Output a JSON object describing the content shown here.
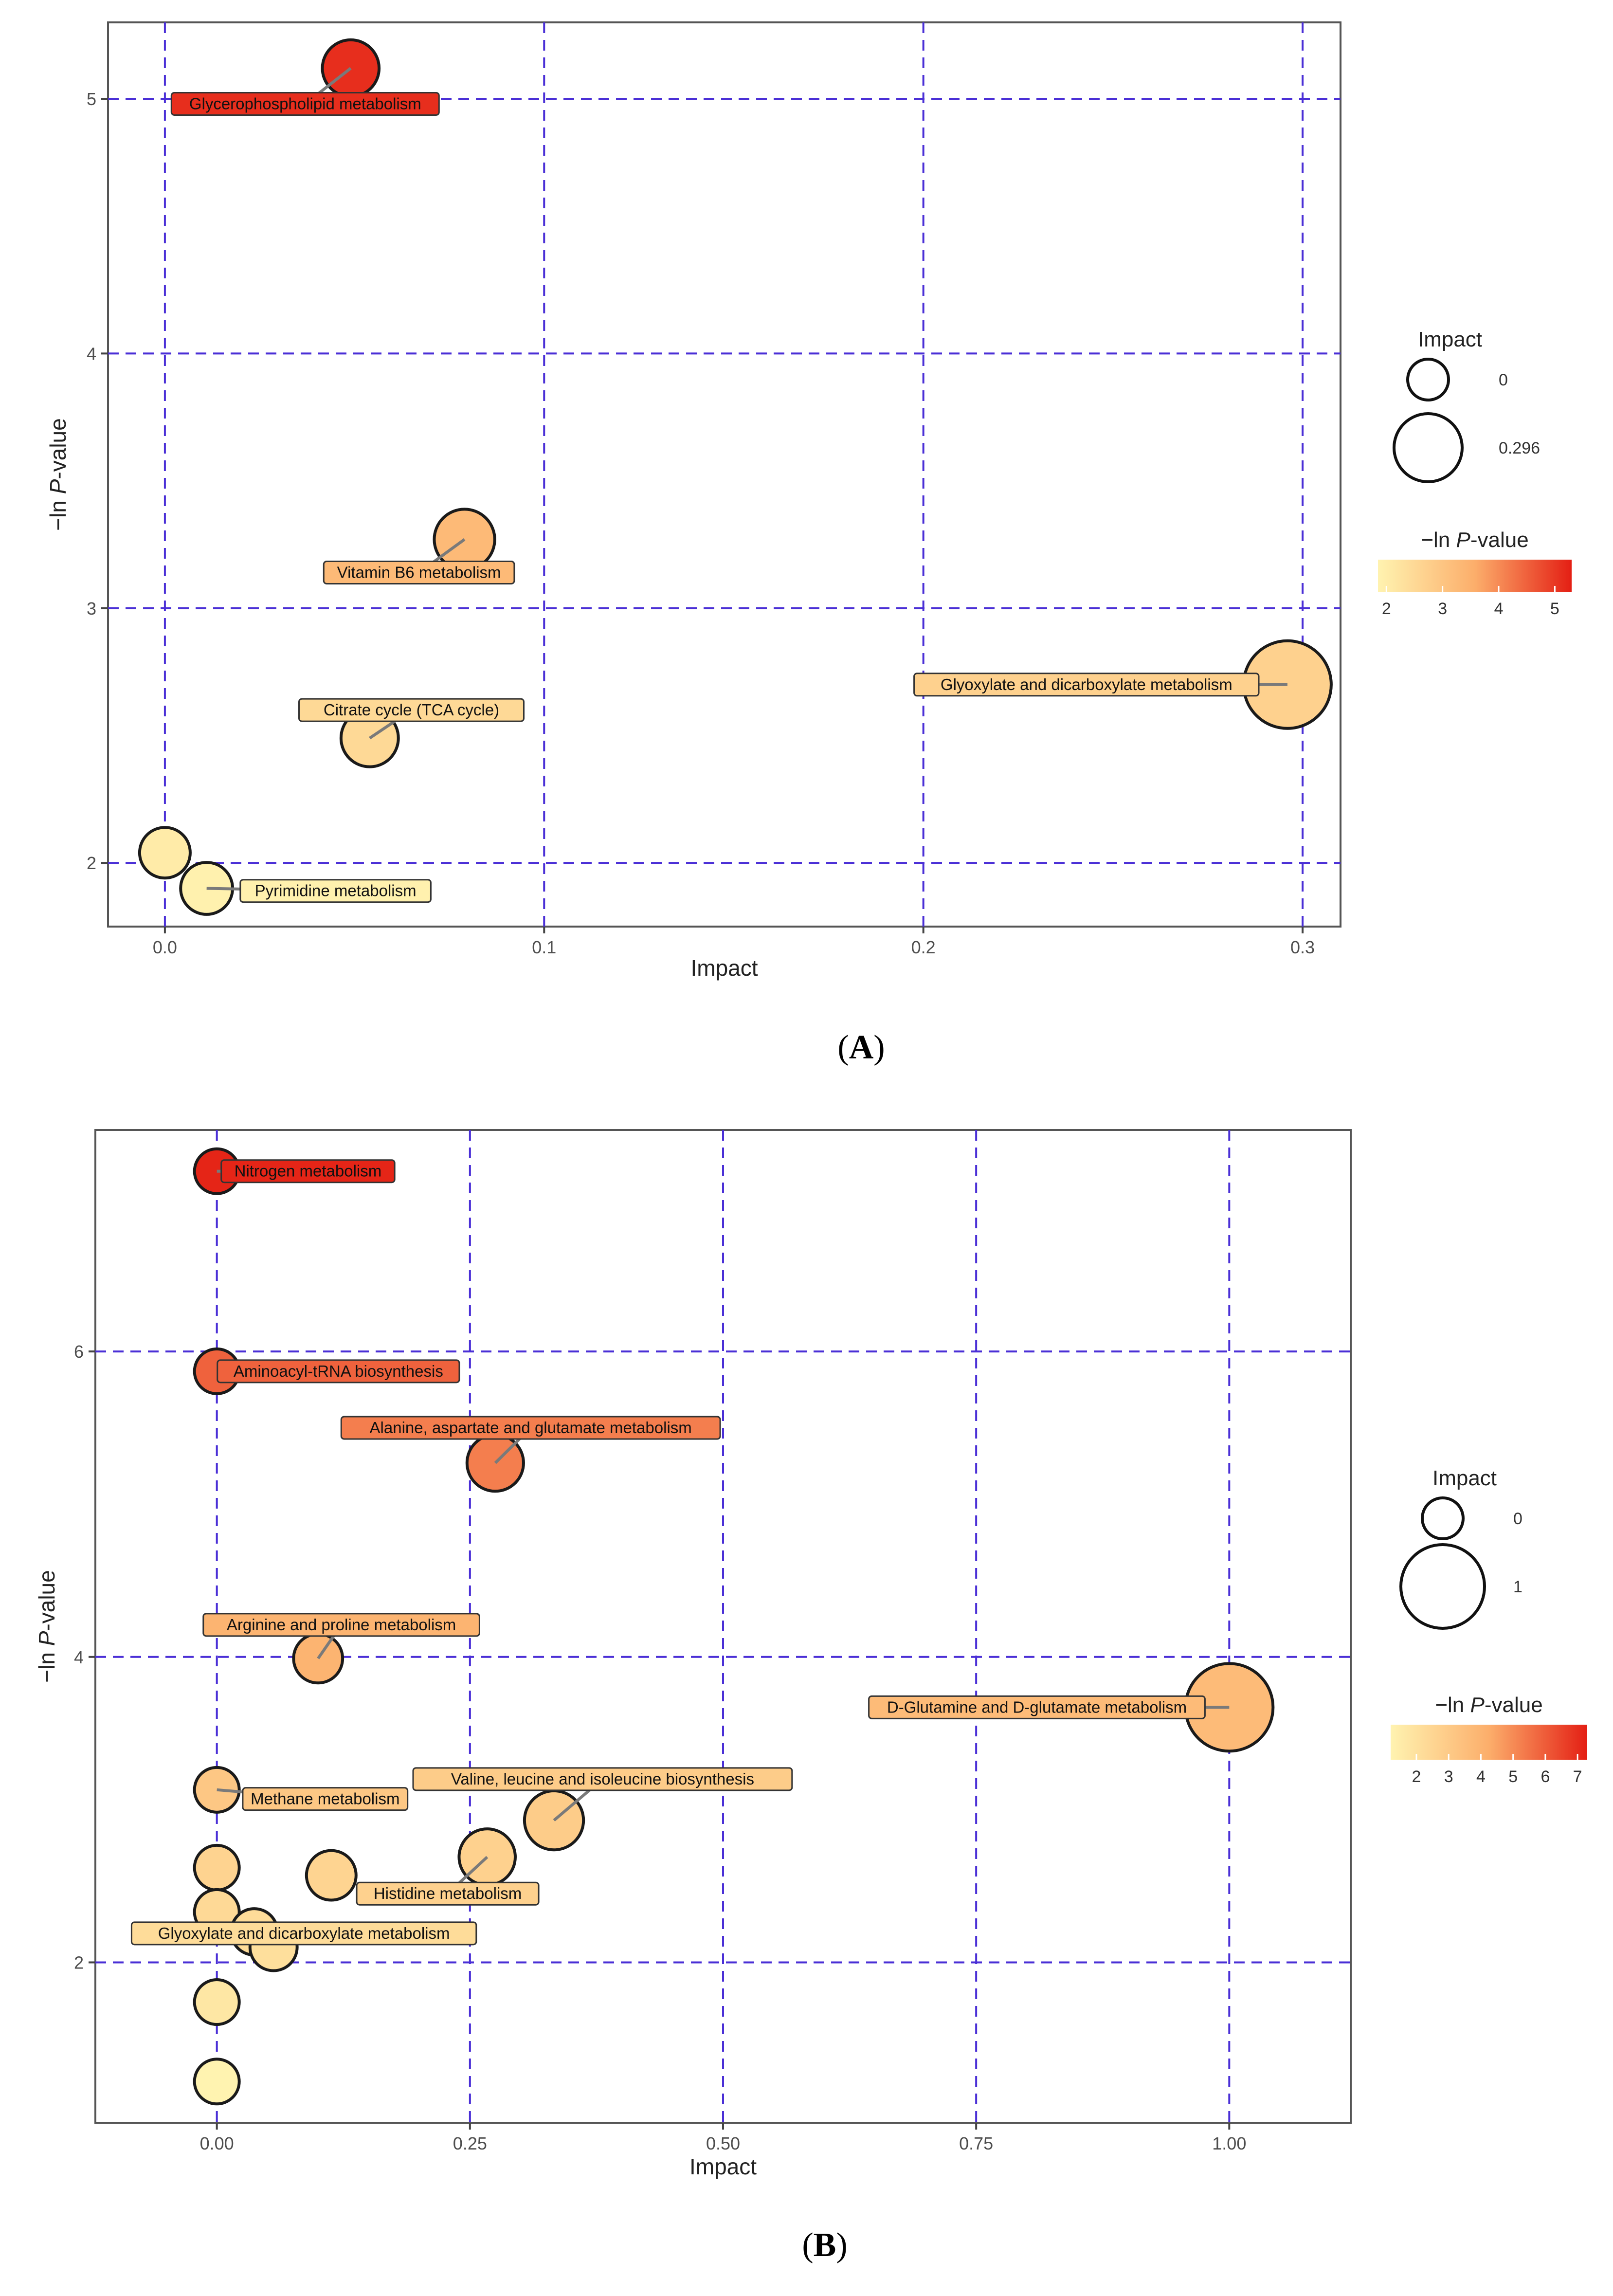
{
  "chart_data": [
    {
      "panel": "A",
      "type": "scatter",
      "title": "",
      "xlabel": "Impact",
      "ylabel_prefix": "−ln ",
      "ylabel_italic": "P",
      "ylabel_suffix": "-value",
      "xlim": [
        -0.015,
        0.31
      ],
      "ylim": [
        1.75,
        5.3
      ],
      "xticks": [
        0.0,
        0.1,
        0.2,
        0.3
      ],
      "xtick_labels": [
        "0.0",
        "0.1",
        "0.2",
        "0.3"
      ],
      "yticks": [
        2,
        3,
        4,
        5
      ],
      "ytick_labels": [
        "2",
        "3",
        "4",
        "5"
      ],
      "size_range": [
        0,
        0.296
      ],
      "color_range": [
        1.85,
        5.3
      ],
      "points": [
        {
          "x": 0.049,
          "y": 5.12,
          "label": "Glycerophospholipid metabolism",
          "lx": 0.037,
          "ly": 4.98
        },
        {
          "x": 0.079,
          "y": 3.27,
          "label": "Vitamin B6 metabolism",
          "lx": 0.067,
          "ly": 3.14
        },
        {
          "x": 0.054,
          "y": 2.49,
          "label": "Citrate cycle (TCA cycle)",
          "lx": 0.065,
          "ly": 2.6
        },
        {
          "x": 0.296,
          "y": 2.7,
          "label": "Glyoxylate and dicarboxylate metabolism",
          "lx": 0.243,
          "ly": 2.7
        },
        {
          "x": 0.0,
          "y": 2.04,
          "label": ""
        },
        {
          "x": 0.011,
          "y": 1.9,
          "label": "Pyrimidine metabolism",
          "lx": 0.045,
          "ly": 1.89
        }
      ],
      "legend": {
        "size_title": "Impact",
        "size_labels": [
          "0",
          "0.296"
        ],
        "color_title_prefix": "−ln ",
        "color_title_italic": "P",
        "color_title_suffix": "-value",
        "color_ticks": [
          2,
          3,
          4,
          5
        ],
        "color_tick_labels": [
          "2",
          "3",
          "4",
          "5"
        ]
      }
    },
    {
      "panel": "B",
      "type": "scatter",
      "title": "",
      "xlabel": "Impact",
      "ylabel_prefix": "−ln ",
      "ylabel_italic": "P",
      "ylabel_suffix": "-value",
      "xlim": [
        -0.12,
        1.12
      ],
      "ylim": [
        0.95,
        7.45
      ],
      "xticks": [
        0.0,
        0.25,
        0.5,
        0.75,
        1.0
      ],
      "xtick_labels": [
        "0.00",
        "0.25",
        "0.50",
        "0.75",
        "1.00"
      ],
      "yticks": [
        2,
        4,
        6
      ],
      "ytick_labels": [
        "2",
        "4",
        "6"
      ],
      "size_range": [
        0,
        1
      ],
      "color_range": [
        1.2,
        7.3
      ],
      "points": [
        {
          "x": 0.0,
          "y": 7.18,
          "label": "Nitrogen metabolism",
          "lx": 0.09,
          "ly": 7.18
        },
        {
          "x": 0.0,
          "y": 5.87,
          "label": "Aminoacyl-tRNA biosynthesis",
          "lx": 0.12,
          "ly": 5.87
        },
        {
          "x": 0.275,
          "y": 5.27,
          "label": "Alanine, aspartate and glutamate metabolism",
          "lx": 0.31,
          "ly": 5.5
        },
        {
          "x": 0.1,
          "y": 3.99,
          "label": "Arginine and proline metabolism",
          "lx": 0.123,
          "ly": 4.21
        },
        {
          "x": 1.0,
          "y": 3.67,
          "label": "D-Glutamine and D-glutamate metabolism",
          "lx": 0.81,
          "ly": 3.67
        },
        {
          "x": 0.0,
          "y": 3.13,
          "label": "Methane metabolism",
          "lx": 0.107,
          "ly": 3.07
        },
        {
          "x": 0.333,
          "y": 2.93,
          "label": "Valine, leucine and isoleucine biosynthesis",
          "lx": 0.381,
          "ly": 3.2
        },
        {
          "x": 0.267,
          "y": 2.69,
          "label": "Histidine metabolism",
          "lx": 0.228,
          "ly": 2.45
        },
        {
          "x": 0.0,
          "y": 2.62,
          "label": ""
        },
        {
          "x": 0.113,
          "y": 2.57,
          "label": ""
        },
        {
          "x": 0.0,
          "y": 2.33,
          "label": ""
        },
        {
          "x": 0.037,
          "y": 2.2,
          "label": "Glyoxylate and dicarboxylate metabolism",
          "lx": 0.086,
          "ly": 2.19
        },
        {
          "x": 0.056,
          "y": 2.1,
          "label": ""
        },
        {
          "x": 0.0,
          "y": 1.74,
          "label": ""
        },
        {
          "x": 0.0,
          "y": 1.22,
          "label": ""
        }
      ],
      "legend": {
        "size_title": "Impact",
        "size_labels": [
          "0",
          "1"
        ],
        "color_title_prefix": "−ln ",
        "color_title_italic": "P",
        "color_title_suffix": "-value",
        "color_ticks": [
          2,
          3,
          4,
          5,
          6,
          7
        ],
        "color_tick_labels": [
          "2",
          "3",
          "4",
          "5",
          "6",
          "7"
        ]
      }
    }
  ],
  "panel_labels": [
    "A",
    "B"
  ],
  "colors": {
    "scale_low": "#fff3b0",
    "scale_mid": "#fcae6b",
    "scale_high": "#e41f14",
    "grid": "#4a2fd6"
  }
}
